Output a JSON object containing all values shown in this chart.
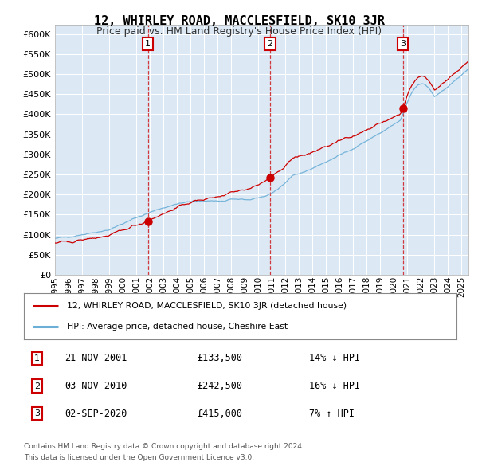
{
  "title": "12, WHIRLEY ROAD, MACCLESFIELD, SK10 3JR",
  "subtitle": "Price paid vs. HM Land Registry's House Price Index (HPI)",
  "bg_color": "#dce9f5",
  "hpi_color": "#6baed6",
  "price_color": "#cc0000",
  "sale_marker_color": "#cc0000",
  "sale1_date_label": "21-NOV-2001",
  "sale1_price": 133500,
  "sale1_hpi_pct": "14% ↓ HPI",
  "sale2_date_label": "03-NOV-2010",
  "sale2_price": 242500,
  "sale2_hpi_pct": "16% ↓ HPI",
  "sale3_date_label": "02-SEP-2020",
  "sale3_price": 415000,
  "sale3_hpi_pct": "7% ↑ HPI",
  "legend_label_red": "12, WHIRLEY ROAD, MACCLESFIELD, SK10 3JR (detached house)",
  "legend_label_blue": "HPI: Average price, detached house, Cheshire East",
  "footer_line1": "Contains HM Land Registry data © Crown copyright and database right 2024.",
  "footer_line2": "This data is licensed under the Open Government Licence v3.0.",
  "ylim_min": 0,
  "ylim_max": 620000,
  "xmin": 1995,
  "xmax": 2025.5
}
